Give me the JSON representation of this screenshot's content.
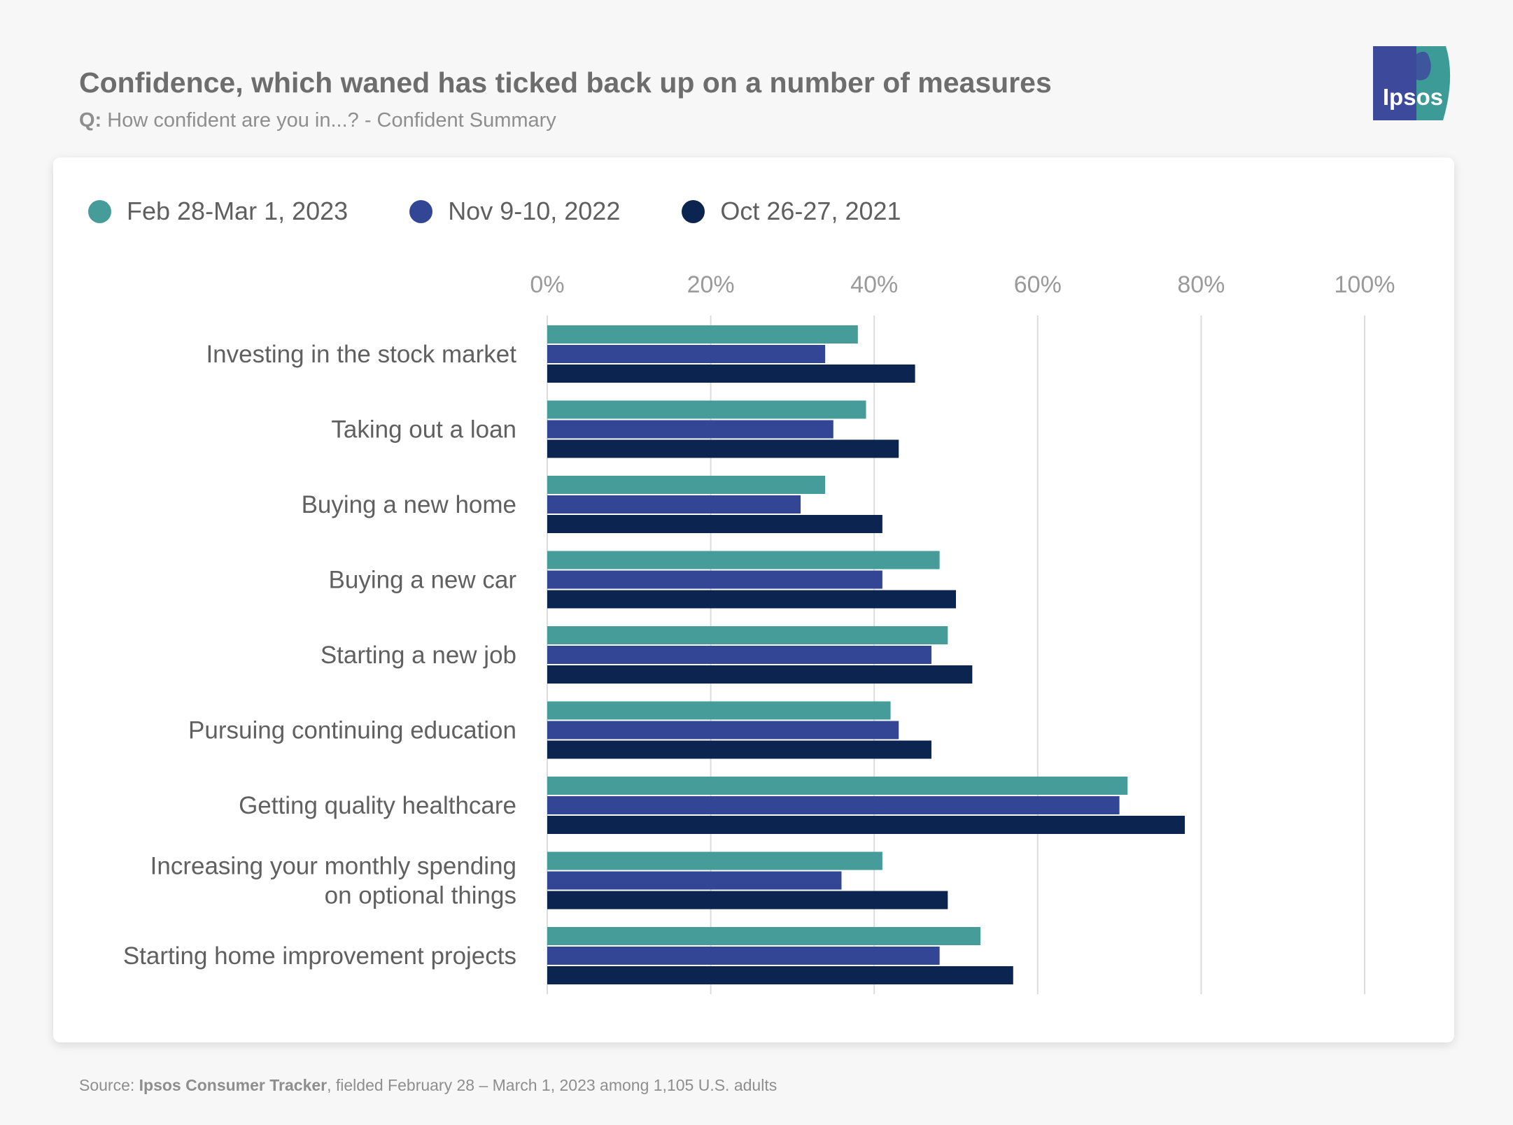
{
  "header": {
    "title": "Confidence, which waned has ticked back up on a number of measures",
    "subtitle_prefix": "Q:",
    "subtitle_text": "How confident are you in...? - Confident Summary"
  },
  "logo": {
    "text": "Ipsos",
    "color_main": "#3d4a9c",
    "color_accent": "#3c9b97"
  },
  "source": {
    "prefix": "Source: ",
    "name": "Ipsos Consumer Tracker",
    "suffix": ", fielded February 28 – March 1, 2023 among 1,105 U.S. adults"
  },
  "chart_data": {
    "type": "bar",
    "orientation": "horizontal",
    "title": "",
    "xlabel": "",
    "ylabel": "",
    "xlim": [
      0,
      100
    ],
    "x_ticks": [
      "0%",
      "20%",
      "40%",
      "60%",
      "80%",
      "100%"
    ],
    "grid": true,
    "legend_position": "top-left",
    "categories": [
      [
        "Investing in the stock market"
      ],
      [
        "Taking out a loan"
      ],
      [
        "Buying a new home"
      ],
      [
        "Buying a new car"
      ],
      [
        "Starting a new job"
      ],
      [
        "Pursuing continuing education"
      ],
      [
        "Getting quality healthcare"
      ],
      [
        "Increasing your monthly spending",
        "on optional things"
      ],
      [
        "Starting home improvement projects"
      ]
    ],
    "series": [
      {
        "name": "Feb 28-Mar 1, 2023",
        "color": "#459c98",
        "values": [
          38,
          39,
          34,
          48,
          49,
          42,
          71,
          41,
          53
        ]
      },
      {
        "name": "Nov 9-10, 2022",
        "color": "#334695",
        "values": [
          34,
          35,
          31,
          41,
          47,
          43,
          70,
          36,
          48
        ]
      },
      {
        "name": "Oct 26-27, 2021",
        "color": "#0c2450",
        "values": [
          45,
          43,
          41,
          50,
          52,
          47,
          78,
          49,
          57
        ]
      }
    ]
  }
}
